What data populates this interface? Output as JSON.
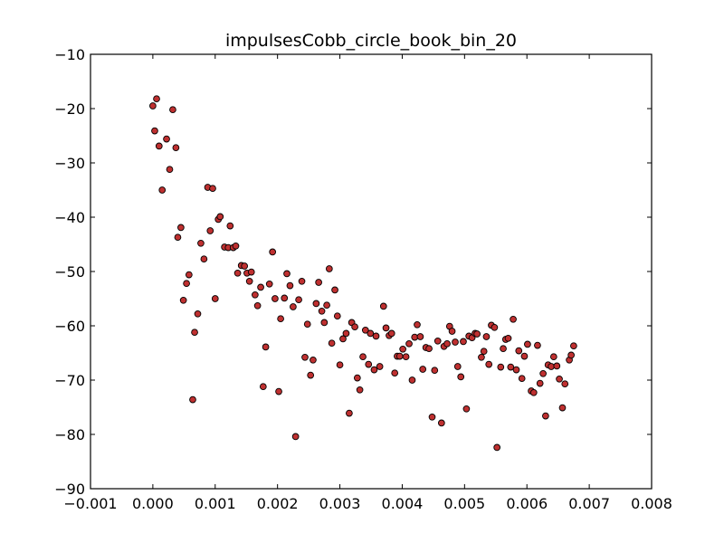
{
  "chart_data": {
    "type": "scatter",
    "title": "impulsesCobb_circle_book_bin_20",
    "xlabel": "",
    "ylabel": "",
    "xlim": [
      -0.001,
      0.008
    ],
    "ylim": [
      -90,
      -10
    ],
    "xticks": [
      -0.001,
      0.0,
      0.001,
      0.002,
      0.003,
      0.004,
      0.005,
      0.006,
      0.007,
      0.008
    ],
    "xtick_labels": [
      "−0.001",
      "0.000",
      "0.001",
      "0.002",
      "0.003",
      "0.004",
      "0.005",
      "0.006",
      "0.007",
      "0.008"
    ],
    "yticks": [
      -90,
      -80,
      -70,
      -60,
      -50,
      -40,
      -30,
      -20,
      -10
    ],
    "ytick_labels": [
      "−90",
      "−80",
      "−70",
      "−60",
      "−50",
      "−40",
      "−30",
      "−20",
      "−10"
    ],
    "grid": false,
    "legend": "none",
    "marker_color": "#bf3030",
    "marker_edge_color": "#000000",
    "series": [
      {
        "points": [
          [
            0.0,
            -19.5
          ],
          [
            6e-05,
            -18.2
          ],
          [
            3e-05,
            -24.1
          ],
          [
            0.0001,
            -26.9
          ],
          [
            0.00015,
            -35.0
          ],
          [
            0.00022,
            -25.6
          ],
          [
            0.00027,
            -31.2
          ],
          [
            0.00032,
            -20.2
          ],
          [
            0.00037,
            -27.2
          ],
          [
            0.0004,
            -43.7
          ],
          [
            0.00045,
            -41.9
          ],
          [
            0.00049,
            -55.3
          ],
          [
            0.00054,
            -52.2
          ],
          [
            0.00058,
            -50.6
          ],
          [
            0.00064,
            -73.6
          ],
          [
            0.00067,
            -61.2
          ],
          [
            0.00072,
            -57.8
          ],
          [
            0.00077,
            -44.8
          ],
          [
            0.00082,
            -47.7
          ],
          [
            0.00088,
            -34.5
          ],
          [
            0.00092,
            -42.5
          ],
          [
            0.00096,
            -34.7
          ],
          [
            0.001,
            -55.0
          ],
          [
            0.00105,
            -40.4
          ],
          [
            0.00108,
            -39.9
          ],
          [
            0.00115,
            -45.5
          ],
          [
            0.00121,
            -45.6
          ],
          [
            0.00124,
            -41.6
          ],
          [
            0.00129,
            -45.6
          ],
          [
            0.00133,
            -45.3
          ],
          [
            0.00136,
            -50.3
          ],
          [
            0.00142,
            -48.9
          ],
          [
            0.00147,
            -49.0
          ],
          [
            0.00151,
            -50.3
          ],
          [
            0.00155,
            -51.8
          ],
          [
            0.00158,
            -50.1
          ],
          [
            0.00164,
            -54.3
          ],
          [
            0.00168,
            -56.3
          ],
          [
            0.00173,
            -52.9
          ],
          [
            0.00177,
            -71.2
          ],
          [
            0.00181,
            -63.9
          ],
          [
            0.00187,
            -52.3
          ],
          [
            0.00192,
            -46.4
          ],
          [
            0.00196,
            -55.0
          ],
          [
            0.00202,
            -72.1
          ],
          [
            0.00205,
            -58.7
          ],
          [
            0.00211,
            -54.9
          ],
          [
            0.00215,
            -50.4
          ],
          [
            0.0022,
            -52.6
          ],
          [
            0.00225,
            -56.5
          ],
          [
            0.00229,
            -80.4
          ],
          [
            0.00234,
            -55.2
          ],
          [
            0.00239,
            -51.8
          ],
          [
            0.00244,
            -65.8
          ],
          [
            0.00248,
            -59.7
          ],
          [
            0.00253,
            -69.1
          ],
          [
            0.00257,
            -66.3
          ],
          [
            0.00262,
            -55.9
          ],
          [
            0.00266,
            -52.0
          ],
          [
            0.00271,
            -57.3
          ],
          [
            0.00275,
            -59.4
          ],
          [
            0.00279,
            -56.2
          ],
          [
            0.00283,
            -49.5
          ],
          [
            0.00287,
            -63.2
          ],
          [
            0.00292,
            -53.4
          ],
          [
            0.00296,
            -58.2
          ],
          [
            0.003,
            -67.2
          ],
          [
            0.00305,
            -62.4
          ],
          [
            0.0031,
            -61.4
          ],
          [
            0.00315,
            -76.1
          ],
          [
            0.00319,
            -59.4
          ],
          [
            0.00324,
            -60.2
          ],
          [
            0.00328,
            -69.6
          ],
          [
            0.00332,
            -71.8
          ],
          [
            0.00337,
            -65.7
          ],
          [
            0.00341,
            -60.8
          ],
          [
            0.00346,
            -67.1
          ],
          [
            0.00349,
            -61.4
          ],
          [
            0.00355,
            -68.1
          ],
          [
            0.00358,
            -61.9
          ],
          [
            0.00364,
            -67.5
          ],
          [
            0.0037,
            -56.4
          ],
          [
            0.00374,
            -60.4
          ],
          [
            0.00379,
            -61.8
          ],
          [
            0.00383,
            -61.4
          ],
          [
            0.00388,
            -68.7
          ],
          [
            0.00392,
            -65.6
          ],
          [
            0.00396,
            -65.6
          ],
          [
            0.00401,
            -64.3
          ],
          [
            0.00406,
            -65.7
          ],
          [
            0.00411,
            -63.3
          ],
          [
            0.00416,
            -70.0
          ],
          [
            0.0042,
            -62.1
          ],
          [
            0.00424,
            -59.8
          ],
          [
            0.00429,
            -62.0
          ],
          [
            0.00433,
            -68.0
          ],
          [
            0.00438,
            -64.0
          ],
          [
            0.00443,
            -64.2
          ],
          [
            0.00448,
            -76.8
          ],
          [
            0.00452,
            -68.2
          ],
          [
            0.00457,
            -62.8
          ],
          [
            0.00463,
            -77.9
          ],
          [
            0.00467,
            -63.8
          ],
          [
            0.00472,
            -63.3
          ],
          [
            0.00476,
            -60.1
          ],
          [
            0.0048,
            -61.0
          ],
          [
            0.00485,
            -63.0
          ],
          [
            0.00489,
            -67.5
          ],
          [
            0.00494,
            -69.4
          ],
          [
            0.00498,
            -62.9
          ],
          [
            0.00503,
            -75.3
          ],
          [
            0.00507,
            -61.9
          ],
          [
            0.00512,
            -62.2
          ],
          [
            0.00517,
            -61.4
          ],
          [
            0.0052,
            -61.5
          ],
          [
            0.00527,
            -65.8
          ],
          [
            0.00531,
            -64.7
          ],
          [
            0.00535,
            -62.0
          ],
          [
            0.00539,
            -67.1
          ],
          [
            0.00543,
            -59.9
          ],
          [
            0.00548,
            -60.3
          ],
          [
            0.00552,
            -82.4
          ],
          [
            0.00558,
            -67.6
          ],
          [
            0.00562,
            -64.2
          ],
          [
            0.00566,
            -62.5
          ],
          [
            0.0057,
            -62.3
          ],
          [
            0.00574,
            -67.6
          ],
          [
            0.00578,
            -58.8
          ],
          [
            0.00583,
            -68.1
          ],
          [
            0.00587,
            -64.6
          ],
          [
            0.00592,
            -69.7
          ],
          [
            0.00596,
            -65.6
          ],
          [
            0.00601,
            -63.4
          ],
          [
            0.00607,
            -72.0
          ],
          [
            0.00611,
            -72.3
          ],
          [
            0.00617,
            -63.6
          ],
          [
            0.00621,
            -70.6
          ],
          [
            0.00626,
            -68.8
          ],
          [
            0.0063,
            -76.6
          ],
          [
            0.00634,
            -67.2
          ],
          [
            0.00639,
            -67.5
          ],
          [
            0.00643,
            -65.7
          ],
          [
            0.00648,
            -67.4
          ],
          [
            0.00652,
            -69.8
          ],
          [
            0.00657,
            -75.1
          ],
          [
            0.00661,
            -70.7
          ],
          [
            0.00668,
            -66.3
          ],
          [
            0.00671,
            -65.4
          ],
          [
            0.00675,
            -63.7
          ]
        ]
      }
    ]
  }
}
